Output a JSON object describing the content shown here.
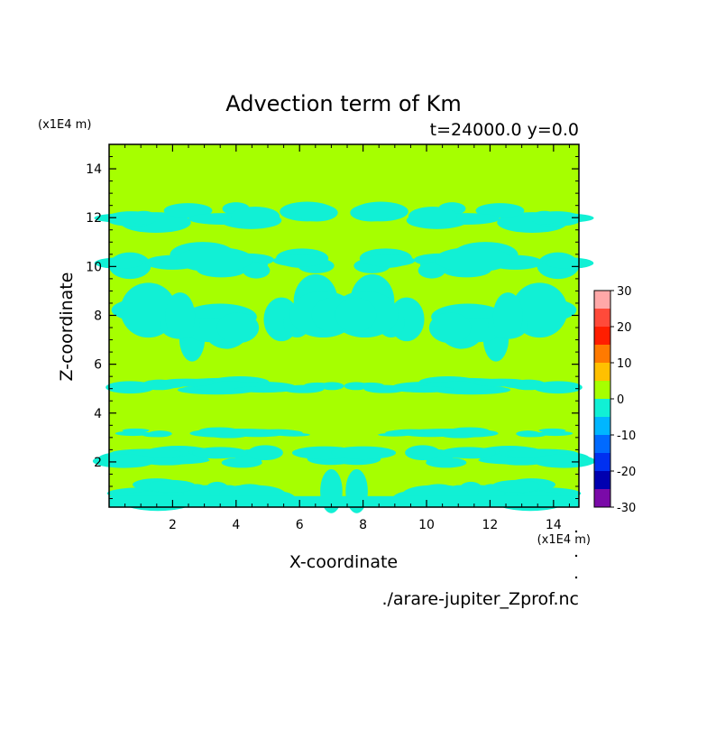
{
  "title": "Advection term of Km",
  "subtitle": "t=24000.0 y=0.0",
  "source_file": "./arare-jupiter_Zprof.nc",
  "colors": {
    "background_level": "#a6ff00",
    "negative_level": "#11f0d5",
    "axis": "#000000"
  },
  "chart_data": {
    "type": "heatmap",
    "title": "Advection term of Km",
    "subtitle": "t=24000.0 y=0.0",
    "xlabel": "X-coordinate",
    "ylabel": "Z-coordinate",
    "x_unit": "(x1E4 m)",
    "y_unit": "(x1E4 m)",
    "xlim": [
      0,
      14.8
    ],
    "ylim": [
      0.15,
      15
    ],
    "x_ticks": [
      2,
      4,
      6,
      8,
      10,
      12,
      14
    ],
    "y_ticks": [
      2,
      4,
      6,
      8,
      10,
      12,
      14
    ],
    "colorbar": {
      "levels": [
        {
          "from": 25,
          "to": 30,
          "color": "#ffa8a8"
        },
        {
          "from": 20,
          "to": 25,
          "color": "#ff4a3a"
        },
        {
          "from": 15,
          "to": 20,
          "color": "#ff1e00"
        },
        {
          "from": 10,
          "to": 15,
          "color": "#ff7a00"
        },
        {
          "from": 5,
          "to": 10,
          "color": "#ffc000"
        },
        {
          "from": 0,
          "to": 5,
          "color": "#a6ff00"
        },
        {
          "from": -5,
          "to": 0,
          "color": "#11f0d5"
        },
        {
          "from": -10,
          "to": -5,
          "color": "#00b6ff"
        },
        {
          "from": -15,
          "to": -10,
          "color": "#006aff"
        },
        {
          "from": -20,
          "to": -15,
          "color": "#0030f0"
        },
        {
          "from": -25,
          "to": -20,
          "color": "#0000b0"
        },
        {
          "from": -30,
          "to": -25,
          "color": "#7a0aa8"
        }
      ],
      "tick_labels": [
        "30",
        "20",
        "10",
        "0",
        "-10",
        "-20",
        "-30"
      ],
      "tick_values": [
        30,
        20,
        10,
        0,
        -10,
        -20,
        -30
      ]
    },
    "negative_regions_z_ranges": [
      [
        0.2,
        1.3
      ],
      [
        1.8,
        2.6
      ],
      [
        3.0,
        3.4
      ],
      [
        4.8,
        5.4
      ],
      [
        6.5,
        9.2
      ],
      [
        9.5,
        10.8
      ],
      [
        11.6,
        12.6
      ]
    ],
    "notes": "Field is near 0 (green, 0 to 5) almost everywhere with patches between -5 and 0 (cyan) in horizontal bands, mirror-symmetric about x=7.4."
  }
}
